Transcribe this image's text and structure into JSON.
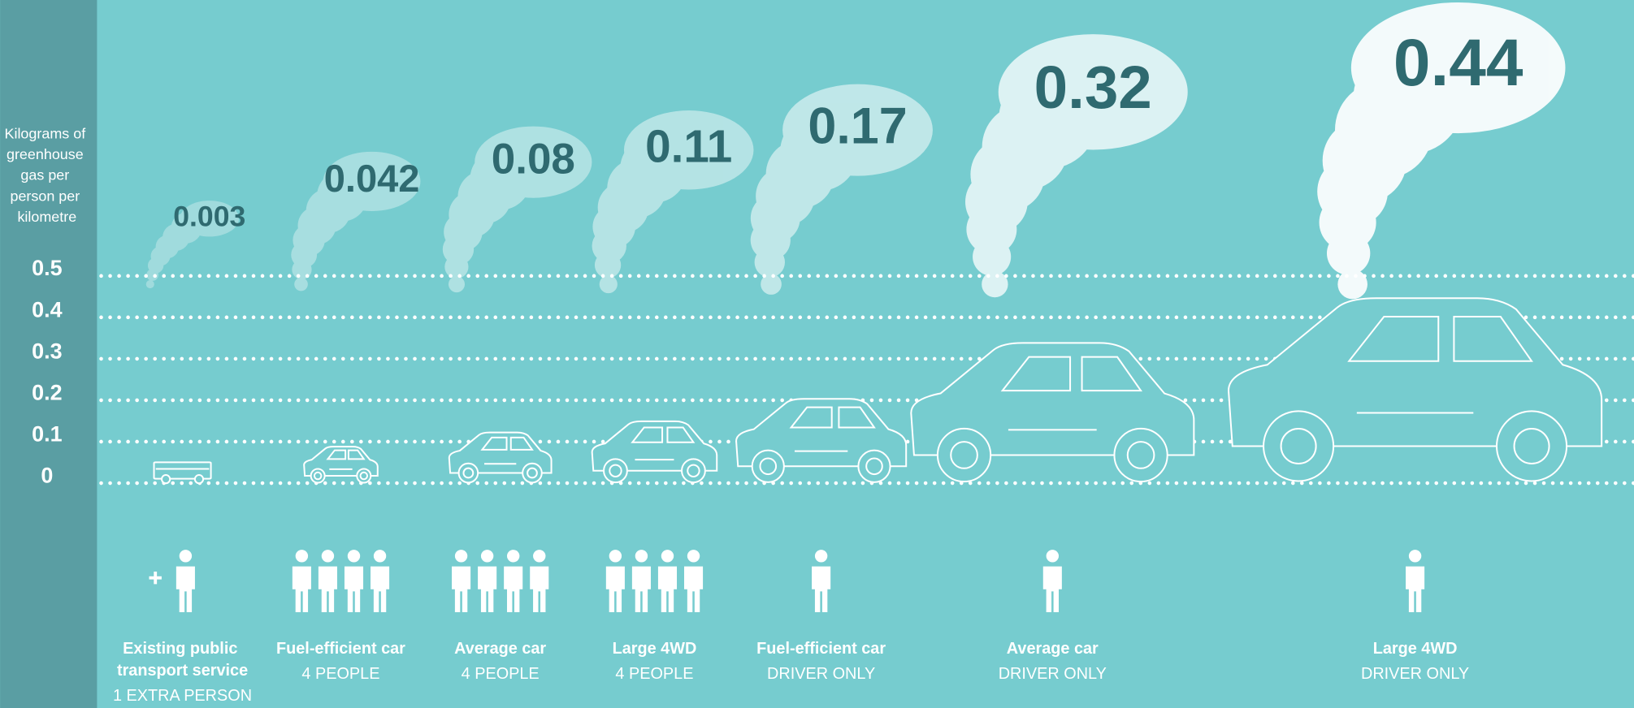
{
  "chart_data": {
    "type": "pictogram",
    "y_label": "Kilograms of greenhouse gas per person per kilometre",
    "categories": [
      "Existing public transport service",
      "Fuel-efficient car",
      "Average car",
      "Large 4WD",
      "Fuel-efficient car",
      "Average car",
      "Large 4WD"
    ],
    "occupancy": [
      "1 EXTRA PERSON",
      "4 PEOPLE",
      "4 PEOPLE",
      "4 PEOPLE",
      "DRIVER ONLY",
      "DRIVER ONLY",
      "DRIVER ONLY"
    ],
    "people": [
      1,
      4,
      4,
      4,
      1,
      1,
      1
    ],
    "values": [
      0.003,
      0.042,
      0.08,
      0.11,
      0.17,
      0.32,
      0.44
    ],
    "ylim": [
      0,
      0.5
    ],
    "yticks": [
      0,
      0.1,
      0.2,
      0.3,
      0.4,
      0.5
    ],
    "grid": true,
    "color": "#ffffff"
  }
}
